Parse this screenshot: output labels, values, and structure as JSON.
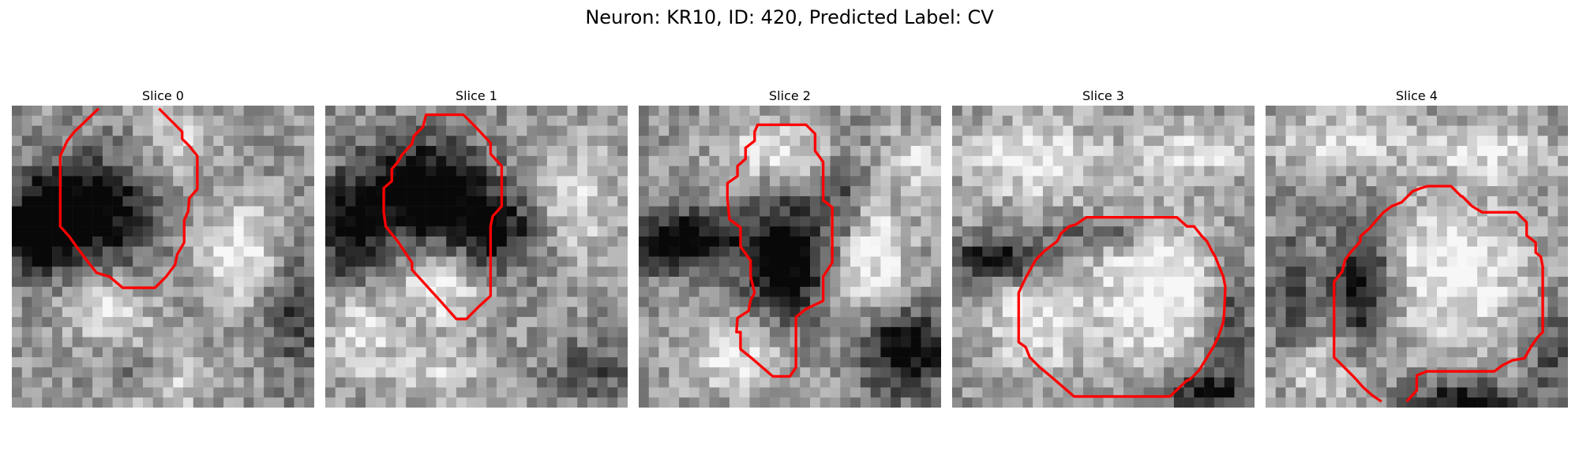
{
  "figure": {
    "title": "Neuron: KR10, ID: 420, Predicted Label: CV"
  },
  "panels": [
    {
      "title": "Slice 0"
    },
    {
      "title": "Slice 1"
    },
    {
      "title": "Slice 2"
    },
    {
      "title": "Slice 3"
    },
    {
      "title": "Slice 4"
    }
  ],
  "colors": {
    "contour": "#ff0000",
    "background": "#ffffff"
  }
}
